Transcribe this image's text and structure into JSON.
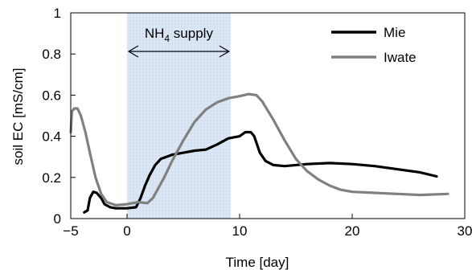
{
  "chart_data": {
    "type": "line",
    "xlabel": "Time [day]",
    "ylabel": "soil EC [mS/cm]",
    "xlim": [
      -5,
      30
    ],
    "ylim": [
      0,
      1
    ],
    "x_ticks": [
      "−5",
      "0",
      "10",
      "20",
      "30"
    ],
    "x_tick_values": [
      -5,
      0,
      10,
      20,
      30
    ],
    "y_ticks": [
      "0",
      "0.2",
      "0.4",
      "0.6",
      "0.8",
      "1"
    ],
    "y_tick_values": [
      0,
      0.2,
      0.4,
      0.6,
      0.8,
      1
    ],
    "legend_position": "top-right",
    "grid": false,
    "annotation": {
      "label_main": "NH",
      "label_sub": "4",
      "label_rest": " supply",
      "x_start": 0,
      "x_end": 9.2,
      "fill_color": "#dbe6f4"
    },
    "series": [
      {
        "name": "Mie",
        "color": "#000000",
        "points": [
          [
            -3.8,
            0.03
          ],
          [
            -3.5,
            0.04
          ],
          [
            -3.3,
            0.1
          ],
          [
            -3.0,
            0.13
          ],
          [
            -2.7,
            0.125
          ],
          [
            -2.3,
            0.1
          ],
          [
            -2.0,
            0.07
          ],
          [
            -1.5,
            0.055
          ],
          [
            -1.0,
            0.05
          ],
          [
            0.0,
            0.05
          ],
          [
            0.8,
            0.055
          ],
          [
            1.2,
            0.1
          ],
          [
            1.6,
            0.16
          ],
          [
            2.0,
            0.21
          ],
          [
            2.5,
            0.26
          ],
          [
            3.0,
            0.29
          ],
          [
            4.0,
            0.31
          ],
          [
            5.0,
            0.32
          ],
          [
            6.0,
            0.33
          ],
          [
            7.0,
            0.335
          ],
          [
            8.0,
            0.36
          ],
          [
            9.0,
            0.39
          ],
          [
            10.0,
            0.4
          ],
          [
            10.5,
            0.42
          ],
          [
            11.0,
            0.42
          ],
          [
            11.3,
            0.4
          ],
          [
            11.8,
            0.32
          ],
          [
            12.3,
            0.28
          ],
          [
            13.0,
            0.26
          ],
          [
            14.0,
            0.255
          ],
          [
            16.0,
            0.265
          ],
          [
            18.0,
            0.27
          ],
          [
            20.0,
            0.265
          ],
          [
            22.0,
            0.255
          ],
          [
            24.0,
            0.24
          ],
          [
            26.0,
            0.225
          ],
          [
            27.5,
            0.205
          ]
        ]
      },
      {
        "name": "Iwate",
        "color": "#808080",
        "points": [
          [
            -5.0,
            0.42
          ],
          [
            -4.9,
            0.52
          ],
          [
            -4.7,
            0.535
          ],
          [
            -4.4,
            0.535
          ],
          [
            -4.1,
            0.5
          ],
          [
            -3.7,
            0.42
          ],
          [
            -3.3,
            0.32
          ],
          [
            -2.8,
            0.2
          ],
          [
            -2.3,
            0.12
          ],
          [
            -1.8,
            0.08
          ],
          [
            -1.0,
            0.065
          ],
          [
            0.0,
            0.07
          ],
          [
            1.0,
            0.08
          ],
          [
            1.8,
            0.075
          ],
          [
            2.3,
            0.1
          ],
          [
            2.8,
            0.15
          ],
          [
            3.3,
            0.2
          ],
          [
            4.0,
            0.28
          ],
          [
            5.0,
            0.38
          ],
          [
            6.0,
            0.47
          ],
          [
            7.0,
            0.53
          ],
          [
            8.0,
            0.565
          ],
          [
            9.0,
            0.585
          ],
          [
            10.0,
            0.595
          ],
          [
            10.8,
            0.605
          ],
          [
            11.5,
            0.6
          ],
          [
            12.0,
            0.57
          ],
          [
            13.0,
            0.48
          ],
          [
            14.0,
            0.38
          ],
          [
            15.0,
            0.29
          ],
          [
            16.0,
            0.23
          ],
          [
            17.0,
            0.19
          ],
          [
            18.0,
            0.16
          ],
          [
            19.0,
            0.14
          ],
          [
            20.0,
            0.13
          ],
          [
            22.0,
            0.125
          ],
          [
            24.0,
            0.12
          ],
          [
            26.0,
            0.115
          ],
          [
            28.5,
            0.12
          ]
        ]
      }
    ]
  }
}
